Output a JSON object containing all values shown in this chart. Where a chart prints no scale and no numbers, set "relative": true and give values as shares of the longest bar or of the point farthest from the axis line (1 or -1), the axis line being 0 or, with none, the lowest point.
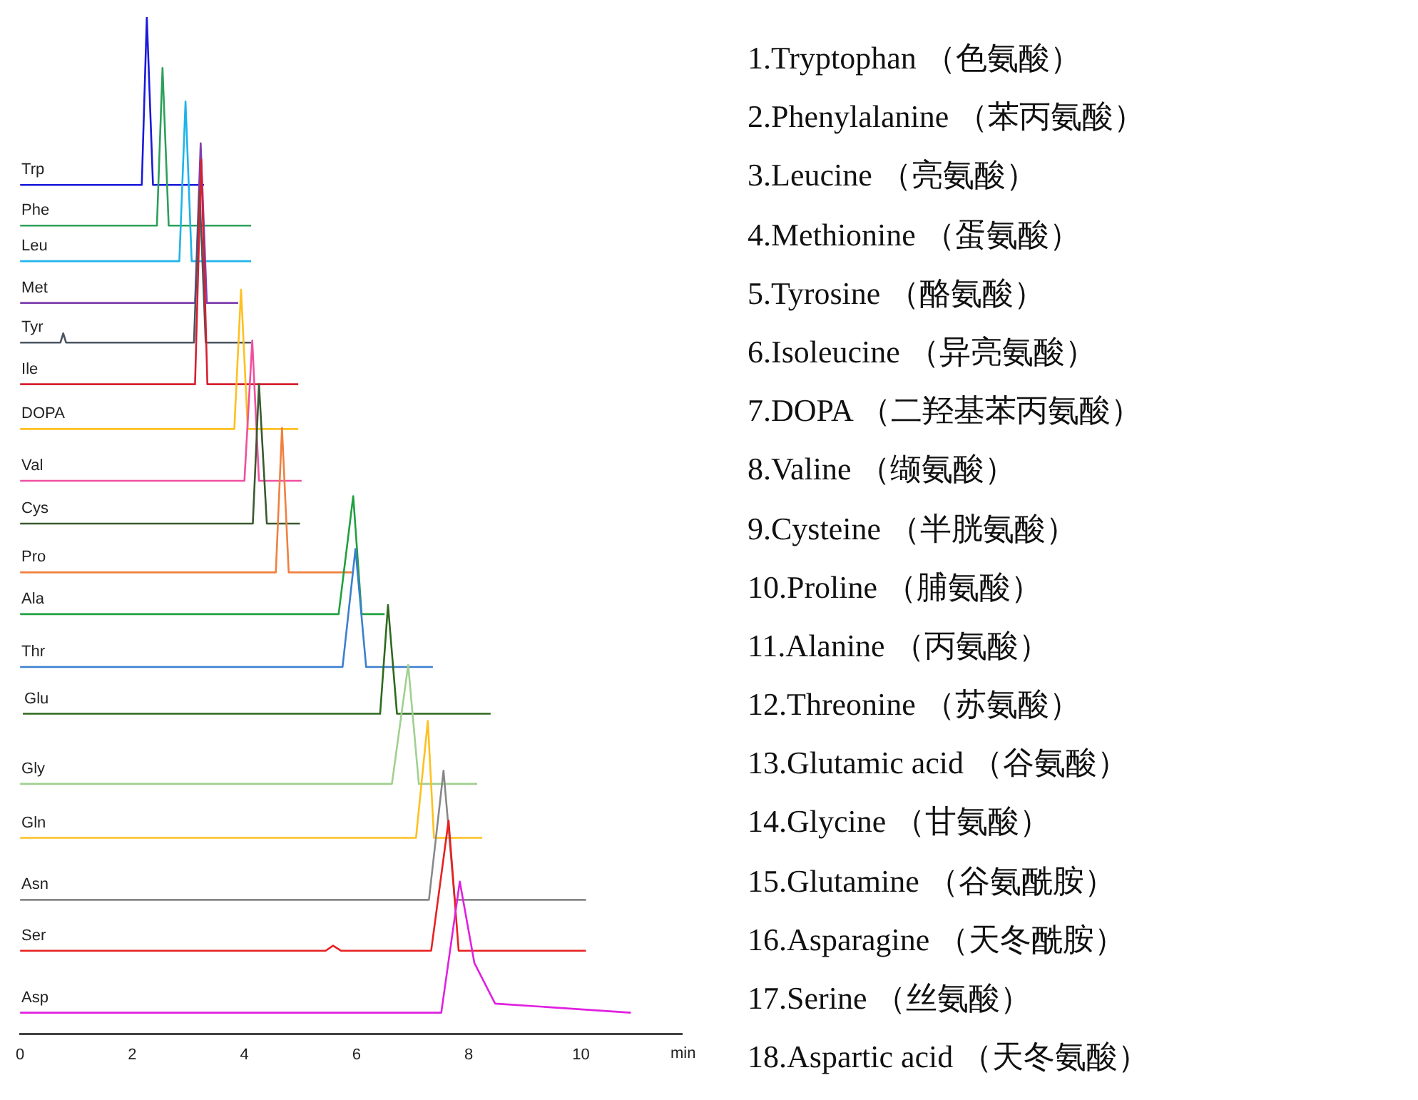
{
  "chart_data": {
    "type": "line",
    "relative": true,
    "xlabel": "min",
    "xlim": [
      0,
      11.8
    ],
    "xticks": [
      0,
      2,
      4,
      6,
      8,
      10
    ],
    "grid": false,
    "legend": false,
    "marker": "none",
    "line_style": "solid",
    "series": [
      {
        "name": "Trp",
        "color": "#1a1adb",
        "x": [
          0,
          2.17,
          2.26,
          2.37,
          3.28
        ],
        "values": [
          0.835,
          0.835,
          1.0,
          0.835,
          0.835
        ]
      },
      {
        "name": "Phe",
        "color": "#2ca05a",
        "x": [
          0,
          2.44,
          2.54,
          2.65,
          4.12
        ],
        "values": [
          0.795,
          0.795,
          0.95,
          0.795,
          0.795
        ]
      },
      {
        "name": "Leu",
        "color": "#1fb4e8",
        "x": [
          0,
          2.84,
          2.95,
          3.06,
          4.12
        ],
        "values": [
          0.76,
          0.76,
          0.917,
          0.76,
          0.76
        ]
      },
      {
        "name": "Met",
        "color": "#8040b0",
        "x": [
          0,
          3.12,
          3.22,
          3.33,
          3.89
        ],
        "values": [
          0.719,
          0.719,
          0.876,
          0.719,
          0.719
        ]
      },
      {
        "name": "Tyr",
        "color": "#4a5560",
        "x": [
          0,
          0.72,
          0.77,
          0.82,
          3.1,
          3.2,
          3.31,
          4.12
        ],
        "values": [
          0.68,
          0.68,
          0.689,
          0.68,
          0.68,
          0.83,
          0.68,
          0.68
        ]
      },
      {
        "name": "Ile",
        "color": "#d62030",
        "x": [
          0,
          3.12,
          3.23,
          3.34,
          4.96
        ],
        "values": [
          0.639,
          0.639,
          0.86,
          0.639,
          0.639
        ]
      },
      {
        "name": "DOPA",
        "color": "#ffc020",
        "x": [
          0,
          3.82,
          3.94,
          4.06,
          4.96
        ],
        "values": [
          0.595,
          0.595,
          0.732,
          0.595,
          0.595
        ]
      },
      {
        "name": "Val",
        "color": "#f050a0",
        "x": [
          0,
          4.0,
          4.14,
          4.26,
          5.02
        ],
        "values": [
          0.544,
          0.544,
          0.682,
          0.544,
          0.544
        ]
      },
      {
        "name": "Cys",
        "color": "#3a5a30",
        "x": [
          0,
          4.15,
          4.26,
          4.4,
          4.99
        ],
        "values": [
          0.502,
          0.502,
          0.639,
          0.502,
          0.502
        ]
      },
      {
        "name": "Pro",
        "color": "#f08040",
        "x": [
          0,
          4.56,
          4.67,
          4.79,
          5.92
        ],
        "values": [
          0.454,
          0.454,
          0.596,
          0.454,
          0.454
        ]
      },
      {
        "name": "Ala",
        "color": "#20a040",
        "x": [
          0,
          5.68,
          5.94,
          6.09,
          6.5
        ],
        "values": [
          0.413,
          0.413,
          0.529,
          0.413,
          0.413
        ]
      },
      {
        "name": "Thr",
        "color": "#3a7fd0",
        "x": [
          0,
          5.75,
          5.98,
          6.17,
          7.36
        ],
        "values": [
          0.361,
          0.361,
          0.477,
          0.361,
          0.361
        ]
      },
      {
        "name": "Glu",
        "color": "#2e6a1e",
        "x": [
          0.05,
          6.42,
          6.56,
          6.72,
          8.39
        ],
        "values": [
          0.315,
          0.315,
          0.422,
          0.315,
          0.315
        ]
      },
      {
        "name": "Gly",
        "color": "#a0d090",
        "x": [
          0,
          6.63,
          6.92,
          7.11,
          8.15
        ],
        "values": [
          0.246,
          0.246,
          0.363,
          0.246,
          0.246
        ]
      },
      {
        "name": "Gln",
        "color": "#ffc020",
        "x": [
          0,
          7.06,
          7.27,
          7.38,
          8.24
        ],
        "values": [
          0.193,
          0.193,
          0.308,
          0.193,
          0.193
        ]
      },
      {
        "name": "Asn",
        "color": "#888888",
        "x": [
          0,
          7.29,
          7.55,
          7.75,
          10.09
        ],
        "values": [
          0.132,
          0.132,
          0.259,
          0.132,
          0.132
        ]
      },
      {
        "name": "Ser",
        "color": "#e82020",
        "x": [
          0,
          5.45,
          5.58,
          5.72,
          7.33,
          7.64,
          7.82,
          10.09
        ],
        "values": [
          0.082,
          0.082,
          0.087,
          0.082,
          0.082,
          0.21,
          0.082,
          0.082
        ]
      },
      {
        "name": "Asp",
        "color": "#e020e0",
        "x": [
          0,
          7.51,
          7.84,
          8.1,
          8.47,
          10.89
        ],
        "values": [
          0.021,
          0.021,
          0.15,
          0.07,
          0.03,
          0.021
        ]
      }
    ],
    "annotations": [
      "1.Tryptophan （色氨酸）",
      "2.Phenylalanine （苯丙氨酸）",
      "3.Leucine （亮氨酸）",
      "4.Methionine （蛋氨酸）",
      "5.Tyrosine （酪氨酸）",
      "6.Isoleucine （异亮氨酸）",
      "7.DOPA （二羟基苯丙氨酸）",
      "8.Valine （缬氨酸）",
      "9.Cysteine （半胱氨酸）",
      "10.Proline （脯氨酸）",
      "11.Alanine （丙氨酸）",
      "12.Threonine （苏氨酸）",
      "13.Glutamic acid （谷氨酸）",
      "14.Glycine （甘氨酸）",
      "15.Glutamine （谷氨酰胺）",
      "16.Asparagine （天冬酰胺）",
      "17.Serine （丝氨酸）",
      "18.Aspartic acid （天冬氨酸）"
    ]
  }
}
